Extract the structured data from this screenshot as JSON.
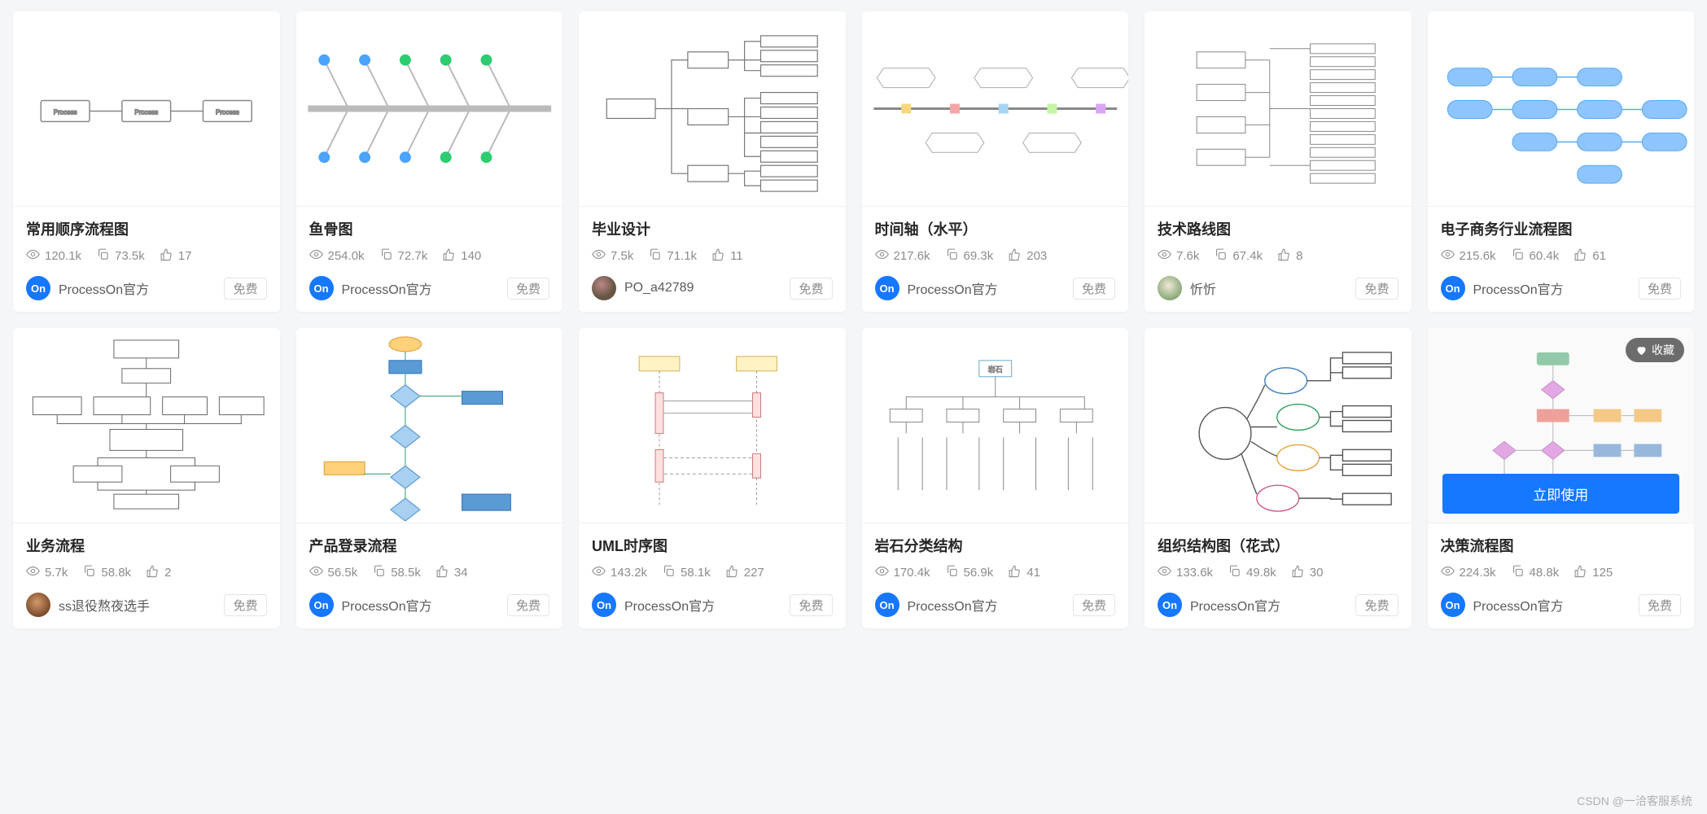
{
  "badge_free": "免费",
  "favorite_label": "收藏",
  "use_now_label": "立即使用",
  "watermark": "CSDN @一洽客服系统",
  "author_on": "ProcessOn官方",
  "cards": [
    {
      "title": "常用顺序流程图",
      "views": "120.1k",
      "copies": "73.5k",
      "likes": "17",
      "author": "ProcessOn官方",
      "avatar_type": "on"
    },
    {
      "title": "鱼骨图",
      "views": "254.0k",
      "copies": "72.7k",
      "likes": "140",
      "author": "ProcessOn官方",
      "avatar_type": "on"
    },
    {
      "title": "毕业设计",
      "views": "7.5k",
      "copies": "71.1k",
      "likes": "11",
      "author": "PO_a42789",
      "avatar_type": "photo1"
    },
    {
      "title": "时间轴（水平）",
      "views": "217.6k",
      "copies": "69.3k",
      "likes": "203",
      "author": "ProcessOn官方",
      "avatar_type": "on"
    },
    {
      "title": "技术路线图",
      "views": "7.6k",
      "copies": "67.4k",
      "likes": "8",
      "author": "忻忻",
      "avatar_type": "photo2"
    },
    {
      "title": "电子商务行业流程图",
      "views": "215.6k",
      "copies": "60.4k",
      "likes": "61",
      "author": "ProcessOn官方",
      "avatar_type": "on"
    },
    {
      "title": "业务流程",
      "views": "5.7k",
      "copies": "58.8k",
      "likes": "2",
      "author": "ss退役熬夜选手",
      "avatar_type": "photo3"
    },
    {
      "title": "产品登录流程",
      "views": "56.5k",
      "copies": "58.5k",
      "likes": "34",
      "author": "ProcessOn官方",
      "avatar_type": "on"
    },
    {
      "title": "UML时序图",
      "views": "143.2k",
      "copies": "58.1k",
      "likes": "227",
      "author": "ProcessOn官方",
      "avatar_type": "on"
    },
    {
      "title": "岩石分类结构",
      "views": "170.4k",
      "copies": "56.9k",
      "likes": "41",
      "author": "ProcessOn官方",
      "avatar_type": "on"
    },
    {
      "title": "组织结构图（花式）",
      "views": "133.6k",
      "copies": "49.8k",
      "likes": "30",
      "author": "ProcessOn官方",
      "avatar_type": "on"
    },
    {
      "title": "决策流程图",
      "views": "224.3k",
      "copies": "48.8k",
      "likes": "125",
      "author": "ProcessOn官方",
      "avatar_type": "on",
      "hovered": true
    }
  ],
  "colors": {
    "accent": "#1677ff",
    "text": "#262626",
    "muted": "#8c8c8c",
    "bg": "#f5f6f8"
  }
}
